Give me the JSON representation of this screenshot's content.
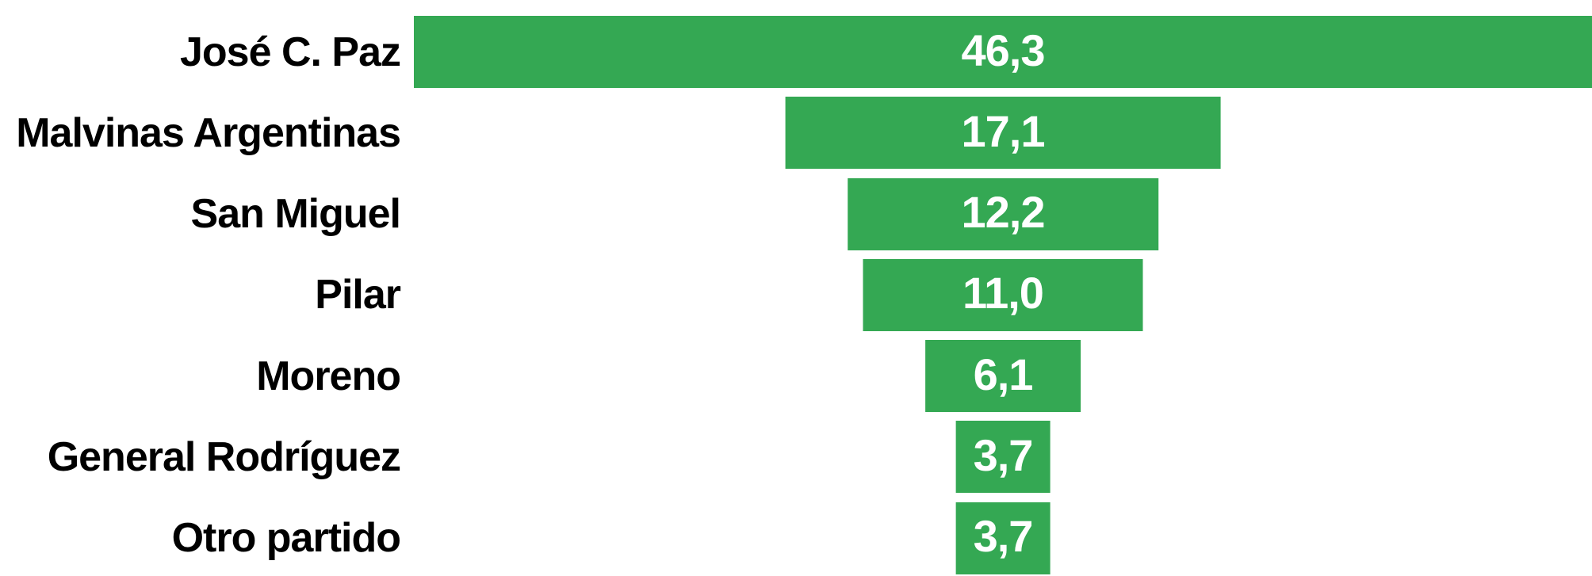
{
  "chart_data": {
    "type": "bar",
    "variant": "horizontal-centered-funnel",
    "title": "",
    "xlabel": "",
    "ylabel": "",
    "grid": "off",
    "legend": "none",
    "categories": [
      "José C. Paz",
      "Malvinas Argentinas",
      "San Miguel",
      "Pilar",
      "Moreno",
      "General Rodríguez",
      "Otro partido"
    ],
    "values": [
      46.3,
      17.1,
      12.2,
      11.0,
      6.1,
      3.7,
      3.7
    ],
    "value_labels": [
      "46,3",
      "17,1",
      "12,2",
      "11,0",
      "6,1",
      "3,7",
      "3,7"
    ],
    "xmax": 46.3,
    "bar_color": "#34a853",
    "value_label_color": "#ffffff",
    "category_label_color": "#000000",
    "background_color": "#ffffff",
    "decimal_separator": ","
  }
}
